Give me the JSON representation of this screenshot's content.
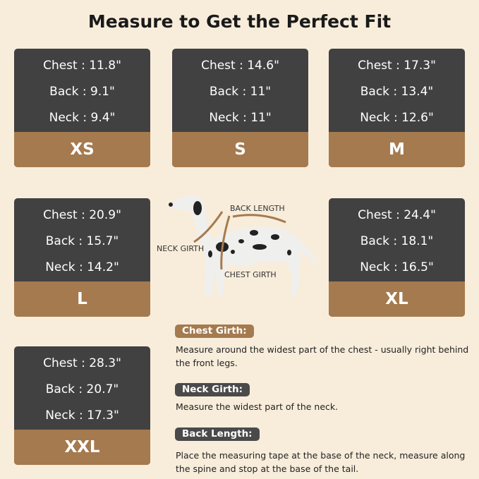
{
  "title": "Measure to Get the Perfect Fit",
  "sizes": [
    {
      "size": "XS",
      "chest": "Chest : 11.8\"",
      "back": "Back : 9.1\"",
      "neck": "Neck : 9.4\""
    },
    {
      "size": "S",
      "chest": "Chest : 14.6\"",
      "back": "Back : 11\"",
      "neck": "Neck : 11\""
    },
    {
      "size": "M",
      "chest": "Chest : 17.3\"",
      "back": "Back : 13.4\"",
      "neck": "Neck : 12.6\""
    },
    {
      "size": "L",
      "chest": "Chest : 20.9\"",
      "back": "Back : 15.7\"",
      "neck": "Neck : 14.2\""
    },
    {
      "size": "XL",
      "chest": "Chest : 24.4\"",
      "back": "Back : 18.1\"",
      "neck": "Neck : 16.5\""
    },
    {
      "size": "XXL",
      "chest": "Chest : 28.3\"",
      "back": "Back : 20.7\"",
      "neck": "Neck : 17.3\""
    }
  ],
  "diagram": {
    "back_length": "BACK LENGTH",
    "neck_girth": "NECK GIRTH",
    "chest_girth": "CHEST GIRTH"
  },
  "guide": [
    {
      "label": "Chest Girth:",
      "text": "Measure around the widest part of the chest - usually right behind the front legs.",
      "color": "#a57a4f"
    },
    {
      "label": "Neck Girth:",
      "text": "Measure the widest part of the neck.",
      "color": "#4a4a4a"
    },
    {
      "label": "Back Length:",
      "text": "Place the measuring tape at the base of the neck, measure along the spine and stop at the base of the tail.",
      "color": "#4a4a4a"
    }
  ],
  "colors": {
    "background": "#f8eddb",
    "card": "#414141",
    "accent": "#a57a4f"
  }
}
